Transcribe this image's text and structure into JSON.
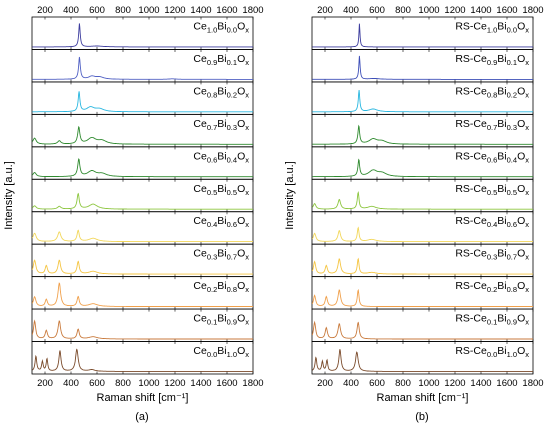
{
  "chart_data": [
    {
      "type": "line",
      "panel_label": "(a)",
      "xlabel": "Raman shift [cm⁻¹]",
      "ylabel": "Intensity [a.u.]",
      "xlim": [
        100,
        1800
      ],
      "xticks": [
        200,
        400,
        600,
        800,
        1000,
        1200,
        1400,
        1600,
        1800
      ],
      "grid": false,
      "layout": "stacked",
      "series": [
        {
          "name": "Ce1.0Bi0.0Ox",
          "ce": "1.0",
          "bi": "0.0",
          "prefix": "",
          "color": "#3d3d9e",
          "peaks": [
            [
              465,
              0.85,
              7
            ],
            [
              600,
              0.03,
              60
            ]
          ]
        },
        {
          "name": "Ce0.9Bi0.1Ox",
          "ce": "0.9",
          "bi": "0.1",
          "prefix": "",
          "color": "#5060c4",
          "peaks": [
            [
              465,
              0.8,
              8
            ],
            [
              560,
              0.1,
              30
            ],
            [
              620,
              0.08,
              40
            ],
            [
              1180,
              0.02,
              30
            ]
          ]
        },
        {
          "name": "Ce0.8Bi0.2Ox",
          "ce": "0.8",
          "bi": "0.2",
          "prefix": "",
          "color": "#29b7e0",
          "peaks": [
            [
              462,
              0.72,
              8
            ],
            [
              550,
              0.16,
              35
            ],
            [
              620,
              0.1,
              40
            ]
          ]
        },
        {
          "name": "Ce0.7Bi0.3Ox",
          "ce": "0.7",
          "bi": "0.3",
          "prefix": "",
          "color": "#2f8a2f",
          "peaks": [
            [
              120,
              0.22,
              15
            ],
            [
              310,
              0.12,
              15
            ],
            [
              460,
              0.6,
              10
            ],
            [
              560,
              0.22,
              40
            ],
            [
              640,
              0.12,
              40
            ]
          ]
        },
        {
          "name": "Ce0.6Bi0.4Ox",
          "ce": "0.6",
          "bi": "0.4",
          "prefix": "",
          "color": "#2f8a2f",
          "peaks": [
            [
              120,
              0.15,
              15
            ],
            [
              460,
              0.62,
              10
            ],
            [
              560,
              0.2,
              40
            ],
            [
              640,
              0.1,
              40
            ]
          ]
        },
        {
          "name": "Ce0.5Bi0.5Ox",
          "ce": "0.5",
          "bi": "0.5",
          "prefix": "",
          "color": "#8dc63f",
          "peaks": [
            [
              120,
              0.12,
              15
            ],
            [
              310,
              0.1,
              15
            ],
            [
              455,
              0.55,
              10
            ],
            [
              570,
              0.18,
              40
            ]
          ]
        },
        {
          "name": "Ce0.4Bi0.6Ox",
          "ce": "0.4",
          "bi": "0.6",
          "prefix": "",
          "color": "#f2d75a",
          "peaks": [
            [
              120,
              0.3,
              15
            ],
            [
              310,
              0.35,
              15
            ],
            [
              455,
              0.4,
              10
            ],
            [
              570,
              0.12,
              40
            ]
          ]
        },
        {
          "name": "Ce0.3Bi0.7Ox",
          "ce": "0.3",
          "bi": "0.7",
          "prefix": "",
          "color": "#f5c542",
          "peaks": [
            [
              120,
              0.5,
              12
            ],
            [
              210,
              0.3,
              10
            ],
            [
              310,
              0.5,
              12
            ],
            [
              455,
              0.45,
              10
            ],
            [
              570,
              0.1,
              40
            ]
          ]
        },
        {
          "name": "Ce0.2Bi0.8Ox",
          "ce": "0.2",
          "bi": "0.8",
          "prefix": "",
          "color": "#f0a04b",
          "peaks": [
            [
              120,
              0.35,
              12
            ],
            [
              210,
              0.25,
              10
            ],
            [
              310,
              0.85,
              12
            ],
            [
              455,
              0.35,
              10
            ],
            [
              570,
              0.1,
              40
            ]
          ]
        },
        {
          "name": "Ce0.1Bi0.9Ox",
          "ce": "0.1",
          "bi": "0.9",
          "prefix": "",
          "color": "#c97a3c",
          "peaks": [
            [
              120,
              0.65,
              10
            ],
            [
              210,
              0.3,
              10
            ],
            [
              310,
              0.65,
              12
            ],
            [
              455,
              0.35,
              10
            ],
            [
              570,
              0.08,
              40
            ]
          ]
        },
        {
          "name": "Ce0.0Bi1.0Ox",
          "ce": "0.0",
          "bi": "1.0",
          "prefix": "",
          "color": "#7a4a2a",
          "peaks": [
            [
              130,
              0.55,
              8
            ],
            [
              180,
              0.35,
              7
            ],
            [
              215,
              0.45,
              7
            ],
            [
              315,
              0.75,
              10
            ],
            [
              445,
              0.8,
              12
            ],
            [
              560,
              0.06,
              30
            ]
          ]
        }
      ]
    },
    {
      "type": "line",
      "panel_label": "(b)",
      "xlabel": "Raman shift [cm⁻¹]",
      "ylabel": "Intensity [a.u.]",
      "xlim": [
        100,
        1800
      ],
      "xticks": [
        200,
        400,
        600,
        800,
        1000,
        1200,
        1400,
        1600,
        1800
      ],
      "grid": false,
      "layout": "stacked",
      "series": [
        {
          "name": "RS-Ce1.0Bi0.0Ox",
          "ce": "1.0",
          "bi": "0.0",
          "prefix": "RS-",
          "color": "#3d3d9e",
          "peaks": [
            [
              465,
              0.85,
              5
            ]
          ]
        },
        {
          "name": "RS-Ce0.9Bi0.1Ox",
          "ce": "0.9",
          "bi": "0.1",
          "prefix": "RS-",
          "color": "#3d4eb8",
          "peaks": [
            [
              465,
              0.85,
              6
            ],
            [
              580,
              0.03,
              50
            ]
          ]
        },
        {
          "name": "RS-Ce0.8Bi0.2Ox",
          "ce": "0.8",
          "bi": "0.2",
          "prefix": "RS-",
          "color": "#29b7e0",
          "peaks": [
            [
              462,
              0.78,
              7
            ],
            [
              570,
              0.1,
              40
            ]
          ]
        },
        {
          "name": "RS-Ce0.7Bi0.3Ox",
          "ce": "0.7",
          "bi": "0.3",
          "prefix": "RS-",
          "color": "#2f8a2f",
          "peaks": [
            [
              460,
              0.65,
              8
            ],
            [
              570,
              0.18,
              40
            ],
            [
              640,
              0.1,
              40
            ]
          ]
        },
        {
          "name": "RS-Ce0.6Bi0.4Ox",
          "ce": "0.6",
          "bi": "0.4",
          "prefix": "RS-",
          "color": "#2f8a2f",
          "peaks": [
            [
              460,
              0.6,
              8
            ],
            [
              570,
              0.22,
              40
            ],
            [
              640,
              0.12,
              40
            ]
          ]
        },
        {
          "name": "RS-Ce0.5Bi0.5Ox",
          "ce": "0.5",
          "bi": "0.5",
          "prefix": "RS-",
          "color": "#8dc63f",
          "peaks": [
            [
              120,
              0.2,
              12
            ],
            [
              310,
              0.35,
              12
            ],
            [
              455,
              0.6,
              8
            ],
            [
              560,
              0.1,
              40
            ]
          ]
        },
        {
          "name": "RS-Ce0.4Bi0.6Ox",
          "ce": "0.4",
          "bi": "0.6",
          "prefix": "RS-",
          "color": "#f2d75a",
          "peaks": [
            [
              120,
              0.3,
              12
            ],
            [
              310,
              0.4,
              12
            ],
            [
              455,
              0.5,
              8
            ],
            [
              560,
              0.08,
              40
            ]
          ]
        },
        {
          "name": "RS-Ce0.3Bi0.7Ox",
          "ce": "0.3",
          "bi": "0.7",
          "prefix": "RS-",
          "color": "#f5c542",
          "peaks": [
            [
              120,
              0.45,
              10
            ],
            [
              210,
              0.3,
              10
            ],
            [
              310,
              0.55,
              12
            ],
            [
              455,
              0.55,
              8
            ],
            [
              560,
              0.06,
              40
            ]
          ]
        },
        {
          "name": "RS-Ce0.2Bi0.8Ox",
          "ce": "0.2",
          "bi": "0.8",
          "prefix": "RS-",
          "color": "#f0a04b",
          "peaks": [
            [
              120,
              0.4,
              10
            ],
            [
              210,
              0.35,
              10
            ],
            [
              310,
              0.6,
              12
            ],
            [
              455,
              0.6,
              8
            ]
          ]
        },
        {
          "name": "RS-Ce0.1Bi0.9Ox",
          "ce": "0.1",
          "bi": "0.9",
          "prefix": "RS-",
          "color": "#c97a3c",
          "peaks": [
            [
              120,
              0.6,
              10
            ],
            [
              210,
              0.4,
              10
            ],
            [
              310,
              0.55,
              12
            ],
            [
              455,
              0.6,
              10
            ]
          ]
        },
        {
          "name": "RS-Ce0.0Bi1.0Ox",
          "ce": "0.0",
          "bi": "1.0",
          "prefix": "RS-",
          "color": "#7a4a2a",
          "peaks": [
            [
              130,
              0.5,
              8
            ],
            [
              180,
              0.35,
              7
            ],
            [
              215,
              0.4,
              7
            ],
            [
              315,
              0.8,
              10
            ],
            [
              445,
              0.7,
              12
            ]
          ]
        }
      ]
    }
  ]
}
